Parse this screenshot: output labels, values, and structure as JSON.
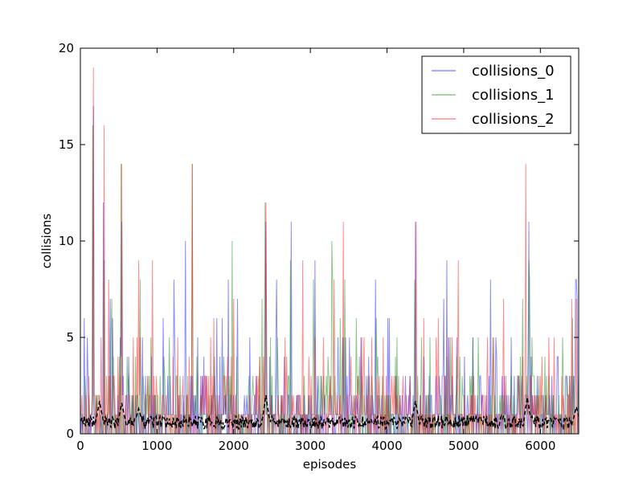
{
  "chart_data": {
    "type": "line",
    "title": "",
    "xlabel": "episodes",
    "ylabel": "collisions",
    "xlim": [
      0,
      6500
    ],
    "ylim": [
      0,
      20
    ],
    "xticks": [
      0,
      1000,
      2000,
      3000,
      4000,
      5000,
      6000
    ],
    "xtick_labels": [
      "0",
      "1000",
      "2000",
      "3000",
      "4000",
      "5000",
      "6000"
    ],
    "yticks": [
      0,
      5,
      10,
      15,
      20
    ],
    "ytick_labels": [
      "0",
      "5",
      "10",
      "15",
      "20"
    ],
    "legend_position": "top-right",
    "series": [
      {
        "name": "collisions_0",
        "color": "#0000ff",
        "alpha": 0.45,
        "baseline": 1.0,
        "peaks": [
          [
            170,
            17
          ],
          [
            300,
            12
          ],
          [
            540,
            11
          ],
          [
            1370,
            10
          ],
          [
            2420,
            11
          ],
          [
            2750,
            11
          ],
          [
            3060,
            9
          ],
          [
            3850,
            8
          ],
          [
            4370,
            11
          ],
          [
            4780,
            9
          ],
          [
            5850,
            11
          ],
          [
            6470,
            8
          ]
        ]
      },
      {
        "name": "collisions_1",
        "color": "#008000",
        "alpha": 0.45,
        "baseline": 0.9,
        "peaks": [
          [
            160,
            16
          ],
          [
            310,
            9
          ],
          [
            530,
            14
          ],
          [
            780,
            8
          ],
          [
            1460,
            14
          ],
          [
            1980,
            10
          ],
          [
            2410,
            12
          ],
          [
            2740,
            9
          ],
          [
            3280,
            10
          ],
          [
            3450,
            8
          ],
          [
            4360,
            8
          ],
          [
            5850,
            9
          ]
        ]
      },
      {
        "name": "collisions_2",
        "color": "#ff0000",
        "alpha": 0.45,
        "baseline": 1.1,
        "peaks": [
          [
            170,
            19
          ],
          [
            310,
            16
          ],
          [
            540,
            14
          ],
          [
            760,
            9
          ],
          [
            940,
            9
          ],
          [
            1460,
            14
          ],
          [
            2420,
            12
          ],
          [
            2900,
            9
          ],
          [
            3430,
            11
          ],
          [
            4380,
            11
          ],
          [
            4930,
            9
          ],
          [
            5810,
            14
          ],
          [
            6470,
            7
          ]
        ]
      },
      {
        "name": "moving average",
        "color": "#000000",
        "style": "dashed",
        "mean": 0.6,
        "peaks": [
          [
            250,
            1.7
          ],
          [
            540,
            1.6
          ],
          [
            760,
            1.3
          ],
          [
            2420,
            2.0
          ],
          [
            4370,
            1.7
          ],
          [
            5830,
            1.9
          ],
          [
            6470,
            1.4
          ]
        ]
      }
    ]
  }
}
